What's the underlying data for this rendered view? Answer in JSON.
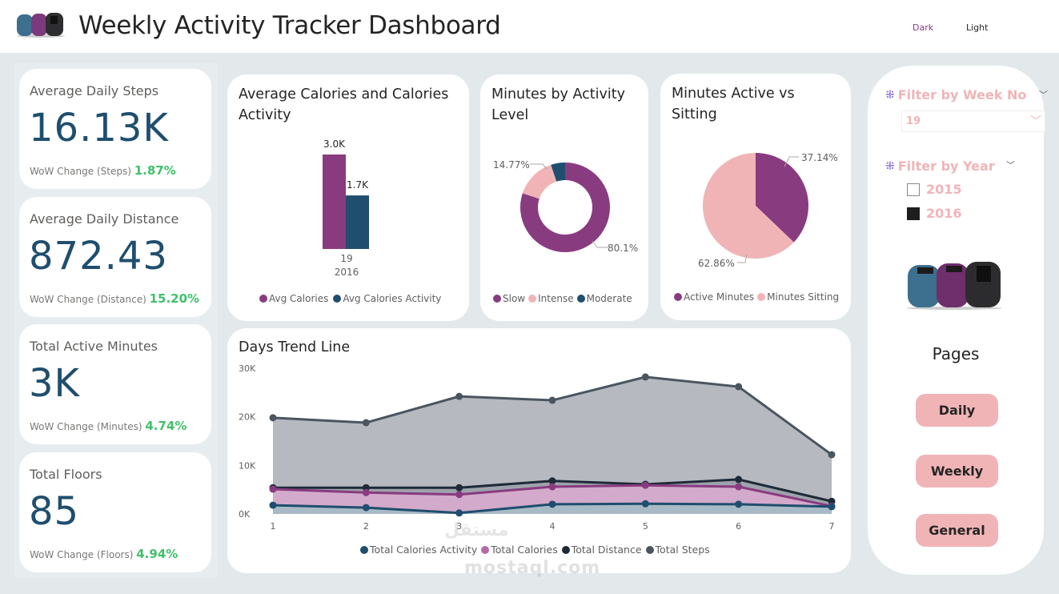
{
  "header": {
    "title": "Weekly Activity Tracker Dashboard",
    "theme_dark_label": "Dark",
    "theme_light_label": "Light",
    "logo_icon": "fitness-bands-image"
  },
  "kpis": [
    {
      "label": "Average Daily Steps",
      "value": "16.13K",
      "change_label": "WoW Change (Steps)",
      "change_value": "1.87%"
    },
    {
      "label": "Average Daily Distance",
      "value": "872.43",
      "change_label": "WoW Change (Distance)",
      "change_value": "15.20%"
    },
    {
      "label": "Total Active Minutes",
      "value": "3K",
      "change_label": "WoW Change (Minutes)",
      "change_value": "4.74%"
    },
    {
      "label": "Total Floors",
      "value": "85",
      "change_label": "WoW Change (Floors)",
      "change_value": "4.94%"
    }
  ],
  "colors": {
    "purple": "#893b80",
    "navy": "#1f4e6e",
    "pink": "#f0b4b7",
    "dark": "#1e2a38",
    "slate": "#4a5560",
    "green": "#3fc06a"
  },
  "chart_data": [
    {
      "type": "bar",
      "title": "Average Calories and Calories Activity",
      "categories": [
        "19"
      ],
      "category_sublabel": "2016",
      "series": [
        {
          "name": "Avg Calories",
          "values": [
            3000
          ],
          "label": "3.0K",
          "color": "#893b80"
        },
        {
          "name": "Avg Calories Activity",
          "values": [
            1700
          ],
          "label": "1.7K",
          "color": "#1f4e6e"
        }
      ]
    },
    {
      "type": "pie",
      "variant": "donut",
      "title": "Minutes by Activity Level",
      "slices": [
        {
          "name": "Slow",
          "value": 80.1,
          "label": "80.1%",
          "color": "#893b80"
        },
        {
          "name": "Intense",
          "value": 14.77,
          "label": "14.77%",
          "color": "#f0b4b7"
        },
        {
          "name": "Moderate",
          "value": 5.13,
          "label": "",
          "color": "#1f4e6e"
        }
      ]
    },
    {
      "type": "pie",
      "title": "Minutes Active vs Sitting",
      "slices": [
        {
          "name": "Active Minutes",
          "value": 37.14,
          "label": "37.14%",
          "color": "#893b80"
        },
        {
          "name": "Minutes Sitting",
          "value": 62.86,
          "label": "62.86%",
          "color": "#f0b4b7"
        }
      ]
    },
    {
      "type": "area",
      "title": "Days Trend Line",
      "x": [
        1,
        2,
        3,
        4,
        5,
        6,
        7
      ],
      "ylim": [
        0,
        30000
      ],
      "yticks": [
        0,
        10000,
        20000,
        30000
      ],
      "ytick_labels": [
        "0K",
        "10K",
        "20K",
        "30K"
      ],
      "legend_position": "bottom",
      "series": [
        {
          "name": "Total Calories Activity",
          "color": "#1f4e6e",
          "fill": "#a8bac6",
          "values": [
            1800,
            1300,
            200,
            2000,
            2100,
            2000,
            1500
          ]
        },
        {
          "name": "Total Calories",
          "color": "#893b80",
          "fill": "#d3aacb",
          "values": [
            5100,
            4400,
            4000,
            5600,
            5900,
            5600,
            1600
          ]
        },
        {
          "name": "Total Distance",
          "color": "#1e2a38",
          "fill": "#9ea3ab",
          "values": [
            5400,
            5400,
            5400,
            6800,
            6100,
            7100,
            2600
          ]
        },
        {
          "name": "Total Steps",
          "color": "#4a5560",
          "fill": "#b6b9c0",
          "values": [
            19800,
            18800,
            24200,
            23400,
            28200,
            26200,
            12200
          ]
        }
      ]
    }
  ],
  "filters": {
    "week": {
      "title": "Filter by Week No",
      "selected": "19"
    },
    "year": {
      "title": "Filter by Year",
      "options": [
        {
          "label": "2015",
          "checked": false
        },
        {
          "label": "2016",
          "checked": true
        }
      ]
    }
  },
  "pages": {
    "title": "Pages",
    "buttons": [
      "Daily",
      "Weekly",
      "General"
    ]
  },
  "watermark": {
    "arabic": "مستقل",
    "latin": "mostaql.com"
  }
}
